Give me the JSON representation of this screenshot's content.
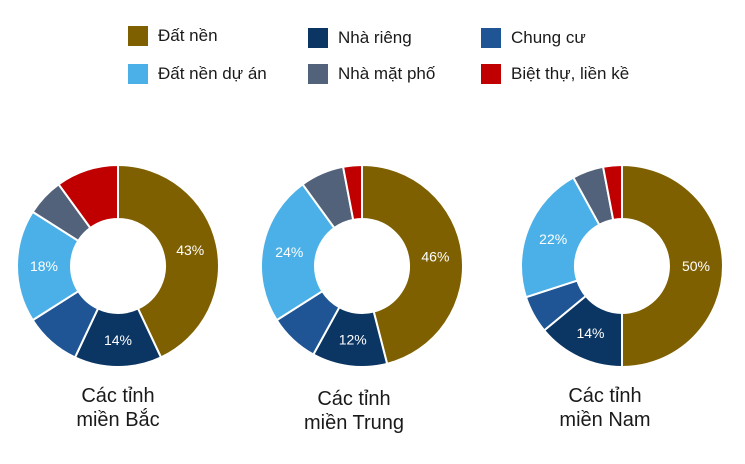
{
  "legend": [
    {
      "label": "Đất nền",
      "color": "#7f6000"
    },
    {
      "label": "Nhà riêng",
      "color": "#0b3563"
    },
    {
      "label": "Chung cư",
      "color": "#1f5594"
    },
    {
      "label": "Đất nền dự án",
      "color": "#4bb0e8"
    },
    {
      "label": "Nhà mặt phố",
      "color": "#52627a"
    },
    {
      "label": "Biệt thự, liền kề",
      "color": "#c00000"
    }
  ],
  "chart_data": [
    {
      "type": "pie",
      "variant": "donut",
      "title_line1": "Các tỉnh",
      "title_line2": "miền Bắc",
      "categories": [
        "Đất nền",
        "Nhà riêng",
        "Chung cư",
        "Đất nền dự án",
        "Nhà mặt phố",
        "Biệt thự, liền kề"
      ],
      "values": [
        43,
        14,
        9,
        18,
        6,
        10
      ],
      "labels": [
        "43%",
        "14%",
        "",
        "18%",
        "",
        ""
      ]
    },
    {
      "type": "pie",
      "variant": "donut",
      "title_line1": "Các tỉnh",
      "title_line2": "miền Trung",
      "categories": [
        "Đất nền",
        "Nhà riêng",
        "Chung cư",
        "Đất nền dự án",
        "Nhà mặt phố",
        "Biệt thự, liền kề"
      ],
      "values": [
        46,
        12,
        8,
        24,
        7,
        3
      ],
      "labels": [
        "46%",
        "12%",
        "",
        "24%",
        "",
        ""
      ]
    },
    {
      "type": "pie",
      "variant": "donut",
      "title_line1": "Các tỉnh",
      "title_line2": "miền Nam",
      "categories": [
        "Đất nền",
        "Nhà riêng",
        "Chung cư",
        "Đất nền dự án",
        "Nhà mặt phố",
        "Biệt thự, liền kề"
      ],
      "values": [
        50,
        14,
        6,
        22,
        5,
        3
      ],
      "labels": [
        "50%",
        "14%",
        "",
        "22%",
        "",
        ""
      ]
    }
  ]
}
